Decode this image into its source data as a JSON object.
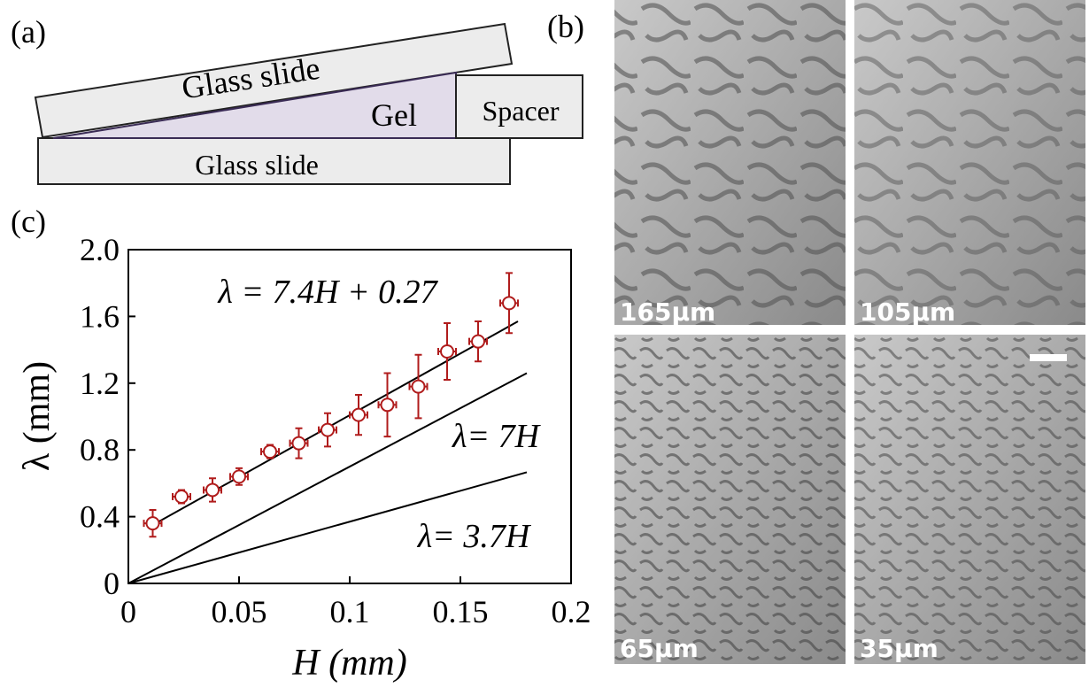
{
  "panel_a": {
    "label": "(a)",
    "top_slide": "Glass slide",
    "gel": "Gel",
    "spacer": "Spacer",
    "bottom_slide": "Glass slide"
  },
  "panel_b": {
    "label": "(b)",
    "images": [
      "165μm",
      "105μm",
      "65μm",
      "35μm"
    ]
  },
  "chart_data": {
    "type": "scatter",
    "label": "(c)",
    "xlabel": "H (mm)",
    "ylabel": "λ (mm)",
    "xlim": [
      0,
      0.2
    ],
    "xticks": [
      0,
      0.05,
      0.1,
      0.15,
      0.2
    ],
    "ylim": [
      0,
      2
    ],
    "yticks": [
      0,
      0.4,
      0.8,
      1.2,
      1.6,
      {
        "value": 2,
        "label": "2.0"
      }
    ],
    "series": [
      {
        "color": "#b01c1c",
        "x": [
          0.011,
          0.024,
          0.038,
          0.05,
          0.064,
          0.077,
          0.09,
          0.104,
          0.117,
          0.131,
          0.144,
          0.158,
          0.172
        ],
        "values": [
          0.36,
          0.52,
          0.56,
          0.64,
          0.79,
          0.84,
          0.92,
          1.01,
          1.07,
          1.18,
          1.39,
          1.45,
          1.68
        ],
        "xerr": [
          0.004,
          0.004,
          0.004,
          0.004,
          0.004,
          0.004,
          0.004,
          0.004,
          0.004,
          0.004,
          0.004,
          0.004,
          0.004
        ],
        "yerr": [
          0.08,
          0.04,
          0.07,
          0.05,
          0.04,
          0.09,
          0.1,
          0.12,
          0.19,
          0.19,
          0.17,
          0.12,
          0.18
        ]
      }
    ],
    "lines": [
      {
        "name": "λ = 7.4H + 0.27",
        "x": [
          0.011,
          0.176
        ],
        "values": [
          0.35,
          1.57
        ]
      },
      {
        "name": "λ= 7H",
        "x": [
          0,
          0.18
        ],
        "values": [
          0,
          1.26
        ]
      },
      {
        "name": "λ= 3.7H",
        "x": [
          0,
          0.18
        ],
        "values": [
          0,
          0.666
        ]
      }
    ]
  }
}
